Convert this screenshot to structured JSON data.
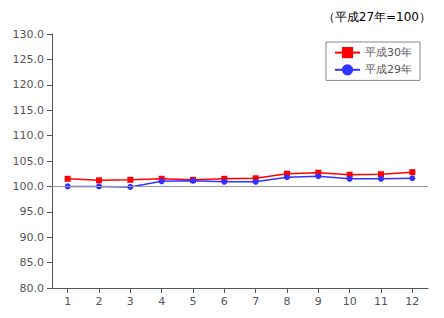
{
  "chart_data": {
    "type": "line",
    "annotation": "（平成27年=100）",
    "x": [
      1,
      2,
      3,
      4,
      5,
      6,
      7,
      8,
      9,
      10,
      11,
      12
    ],
    "series": [
      {
        "name": "平成30年",
        "color": "#ff0000",
        "marker": "square",
        "values": [
          101.5,
          101.2,
          101.3,
          101.5,
          101.3,
          101.5,
          101.6,
          102.5,
          102.7,
          102.3,
          102.4,
          102.8
        ]
      },
      {
        "name": "平成29年",
        "color": "#3333ff",
        "marker": "circle",
        "values": [
          100.0,
          100.0,
          99.9,
          101.0,
          101.1,
          100.9,
          100.9,
          101.8,
          102.0,
          101.5,
          101.5,
          101.6
        ]
      }
    ],
    "xlim": [
      0.5,
      12.5
    ],
    "xticks": [
      1,
      2,
      3,
      4,
      5,
      6,
      7,
      8,
      9,
      10,
      11,
      12
    ],
    "ylim": [
      80.0,
      130.0
    ],
    "yticks": [
      {
        "value": 80,
        "label": "80.0"
      },
      {
        "value": 85,
        "label": "85.0"
      },
      {
        "value": 90,
        "label": "90.0"
      },
      {
        "value": 95,
        "label": "95.0"
      },
      {
        "value": 100,
        "label": "100.0"
      },
      {
        "value": 105,
        "label": "105.0"
      },
      {
        "value": 110,
        "label": "110.0"
      },
      {
        "value": 115,
        "label": "115.0"
      },
      {
        "value": 120,
        "label": "120.0"
      },
      {
        "value": 125,
        "label": "125.0"
      },
      {
        "value": 130,
        "label": "130.0"
      }
    ],
    "grid": false,
    "legend": "upper right",
    "hline": {
      "y": 100,
      "color": "#999999"
    }
  }
}
